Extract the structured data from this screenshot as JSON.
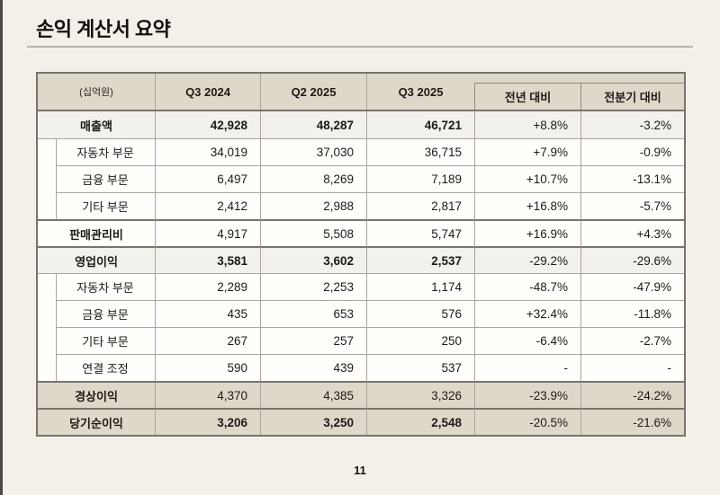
{
  "page": {
    "title": "손익 계산서 요약",
    "page_number": "11"
  },
  "table": {
    "unit_label": "(십억원)",
    "columns": [
      "Q3 2024",
      "Q2 2025",
      "Q3 2025"
    ],
    "compare_columns": [
      "전년 대비",
      "전분기 대비"
    ],
    "rows": [
      {
        "label": "매출액",
        "style": "group",
        "values": [
          "42,928",
          "48,287",
          "46,721"
        ],
        "yoy": "+8.8%",
        "qoq": "-3.2%"
      },
      {
        "label": "자동차 부문",
        "style": "sub",
        "values": [
          "34,019",
          "37,030",
          "36,715"
        ],
        "yoy": "+7.9%",
        "qoq": "-0.9%"
      },
      {
        "label": "금융 부문",
        "style": "sub",
        "values": [
          "6,497",
          "8,269",
          "7,189"
        ],
        "yoy": "+10.7%",
        "qoq": "-13.1%"
      },
      {
        "label": "기타 부문",
        "style": "sub",
        "values": [
          "2,412",
          "2,988",
          "2,817"
        ],
        "yoy": "+16.8%",
        "qoq": "-5.7%"
      },
      {
        "label": "판매관리비",
        "style": "plain",
        "values": [
          "4,917",
          "5,508",
          "5,747"
        ],
        "yoy": "+16.9%",
        "qoq": "+4.3%"
      },
      {
        "label": "영업이익",
        "style": "group",
        "values": [
          "3,581",
          "3,602",
          "2,537"
        ],
        "yoy": "-29.2%",
        "qoq": "-29.6%"
      },
      {
        "label": "자동차 부문",
        "style": "sub",
        "values": [
          "2,289",
          "2,253",
          "1,174"
        ],
        "yoy": "-48.7%",
        "qoq": "-47.9%"
      },
      {
        "label": "금융 부문",
        "style": "sub",
        "values": [
          "435",
          "653",
          "576"
        ],
        "yoy": "+32.4%",
        "qoq": "-11.8%"
      },
      {
        "label": "기타 부문",
        "style": "sub",
        "values": [
          "267",
          "257",
          "250"
        ],
        "yoy": "-6.4%",
        "qoq": "-2.7%"
      },
      {
        "label": "연결 조정",
        "style": "sub",
        "values": [
          "590",
          "439",
          "537"
        ],
        "yoy": "-",
        "qoq": "-"
      },
      {
        "label": "경상이익",
        "style": "summary",
        "values": [
          "4,370",
          "4,385",
          "3,326"
        ],
        "yoy": "-23.9%",
        "qoq": "-24.2%"
      },
      {
        "label": "당기순이익",
        "style": "summary_bold",
        "values": [
          "3,206",
          "3,250",
          "2,548"
        ],
        "yoy": "-20.5%",
        "qoq": "-21.6%"
      }
    ]
  }
}
